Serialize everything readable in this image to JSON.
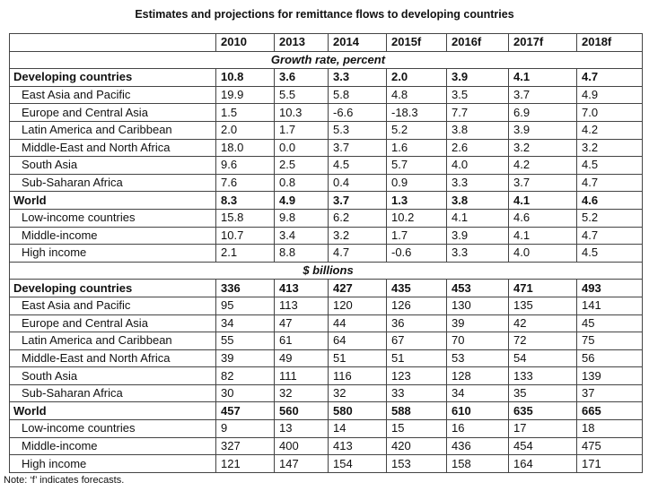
{
  "title": "Estimates and projections for remittance flows to developing countries",
  "table": {
    "columns": [
      "2010",
      "2013",
      "2014",
      "2015f",
      "2016f",
      "2017f",
      "2018f"
    ],
    "sections": [
      {
        "heading": "Growth rate, percent",
        "rows": [
          {
            "label": "Developing countries",
            "cells": [
              "10.8",
              "3.6",
              "3.3",
              "2.0",
              "3.9",
              "4.1",
              "4.7"
            ],
            "bold": true
          },
          {
            "label": "East Asia and Pacific",
            "cells": [
              "19.9",
              "5.5",
              "5.8",
              "4.8",
              "3.5",
              "3.7",
              "4.9"
            ]
          },
          {
            "label": "Europe and Central Asia",
            "cells": [
              "1.5",
              "10.3",
              "-6.6",
              "-18.3",
              "7.7",
              "6.9",
              "7.0"
            ]
          },
          {
            "label": "Latin America and Caribbean",
            "cells": [
              "2.0",
              "1.7",
              "5.3",
              "5.2",
              "3.8",
              "3.9",
              "4.2"
            ]
          },
          {
            "label": "Middle-East and North Africa",
            "cells": [
              "18.0",
              "0.0",
              "3.7",
              "1.6",
              "2.6",
              "3.2",
              "3.2"
            ]
          },
          {
            "label": "South Asia",
            "cells": [
              "9.6",
              "2.5",
              "4.5",
              "5.7",
              "4.0",
              "4.2",
              "4.5"
            ]
          },
          {
            "label": "Sub-Saharan Africa",
            "cells": [
              "7.6",
              "0.8",
              "0.4",
              "0.9",
              "3.3",
              "3.7",
              "4.7"
            ]
          },
          {
            "label": "World",
            "cells": [
              "8.3",
              "4.9",
              "3.7",
              "1.3",
              "3.8",
              "4.1",
              "4.6"
            ],
            "bold": true
          },
          {
            "label": "Low-income countries",
            "cells": [
              "15.8",
              "9.8",
              "6.2",
              "10.2",
              "4.1",
              "4.6",
              "5.2"
            ]
          },
          {
            "label": "Middle-income",
            "cells": [
              "10.7",
              "3.4",
              "3.2",
              "1.7",
              "3.9",
              "4.1",
              "4.7"
            ]
          },
          {
            "label": "High income",
            "cells": [
              "2.1",
              "8.8",
              "4.7",
              "-0.6",
              "3.3",
              "4.0",
              "4.5"
            ]
          }
        ]
      },
      {
        "heading": "$ billions",
        "rows": [
          {
            "label": "Developing countries",
            "cells": [
              "336",
              "413",
              "427",
              "435",
              "453",
              "471",
              "493"
            ],
            "bold": true
          },
          {
            "label": "East Asia and Pacific",
            "cells": [
              "95",
              "113",
              "120",
              "126",
              "130",
              "135",
              "141"
            ]
          },
          {
            "label": "Europe and Central Asia",
            "cells": [
              "34",
              "47",
              "44",
              "36",
              "39",
              "42",
              "45"
            ]
          },
          {
            "label": "Latin America and Caribbean",
            "cells": [
              "55",
              "61",
              "64",
              "67",
              "70",
              "72",
              "75"
            ]
          },
          {
            "label": "Middle-East and North Africa",
            "cells": [
              "39",
              "49",
              "51",
              "51",
              "53",
              "54",
              "56"
            ]
          },
          {
            "label": "South Asia",
            "cells": [
              "82",
              "111",
              "116",
              "123",
              "128",
              "133",
              "139"
            ]
          },
          {
            "label": "Sub-Saharan Africa",
            "cells": [
              "30",
              "32",
              "32",
              "33",
              "34",
              "35",
              "37"
            ]
          },
          {
            "label": "World",
            "cells": [
              "457",
              "560",
              "580",
              "588",
              "610",
              "635",
              "665"
            ],
            "bold": true
          },
          {
            "label": "Low-income countries",
            "cells": [
              "9",
              "13",
              "14",
              "15",
              "16",
              "17",
              "18"
            ]
          },
          {
            "label": "Middle-income",
            "cells": [
              "327",
              "400",
              "413",
              "420",
              "436",
              "454",
              "475"
            ]
          },
          {
            "label": "High income",
            "cells": [
              "121",
              "147",
              "154",
              "153",
              "158",
              "164",
              "171"
            ]
          }
        ]
      }
    ]
  },
  "note": "Note: ‘f’ indicates forecasts."
}
